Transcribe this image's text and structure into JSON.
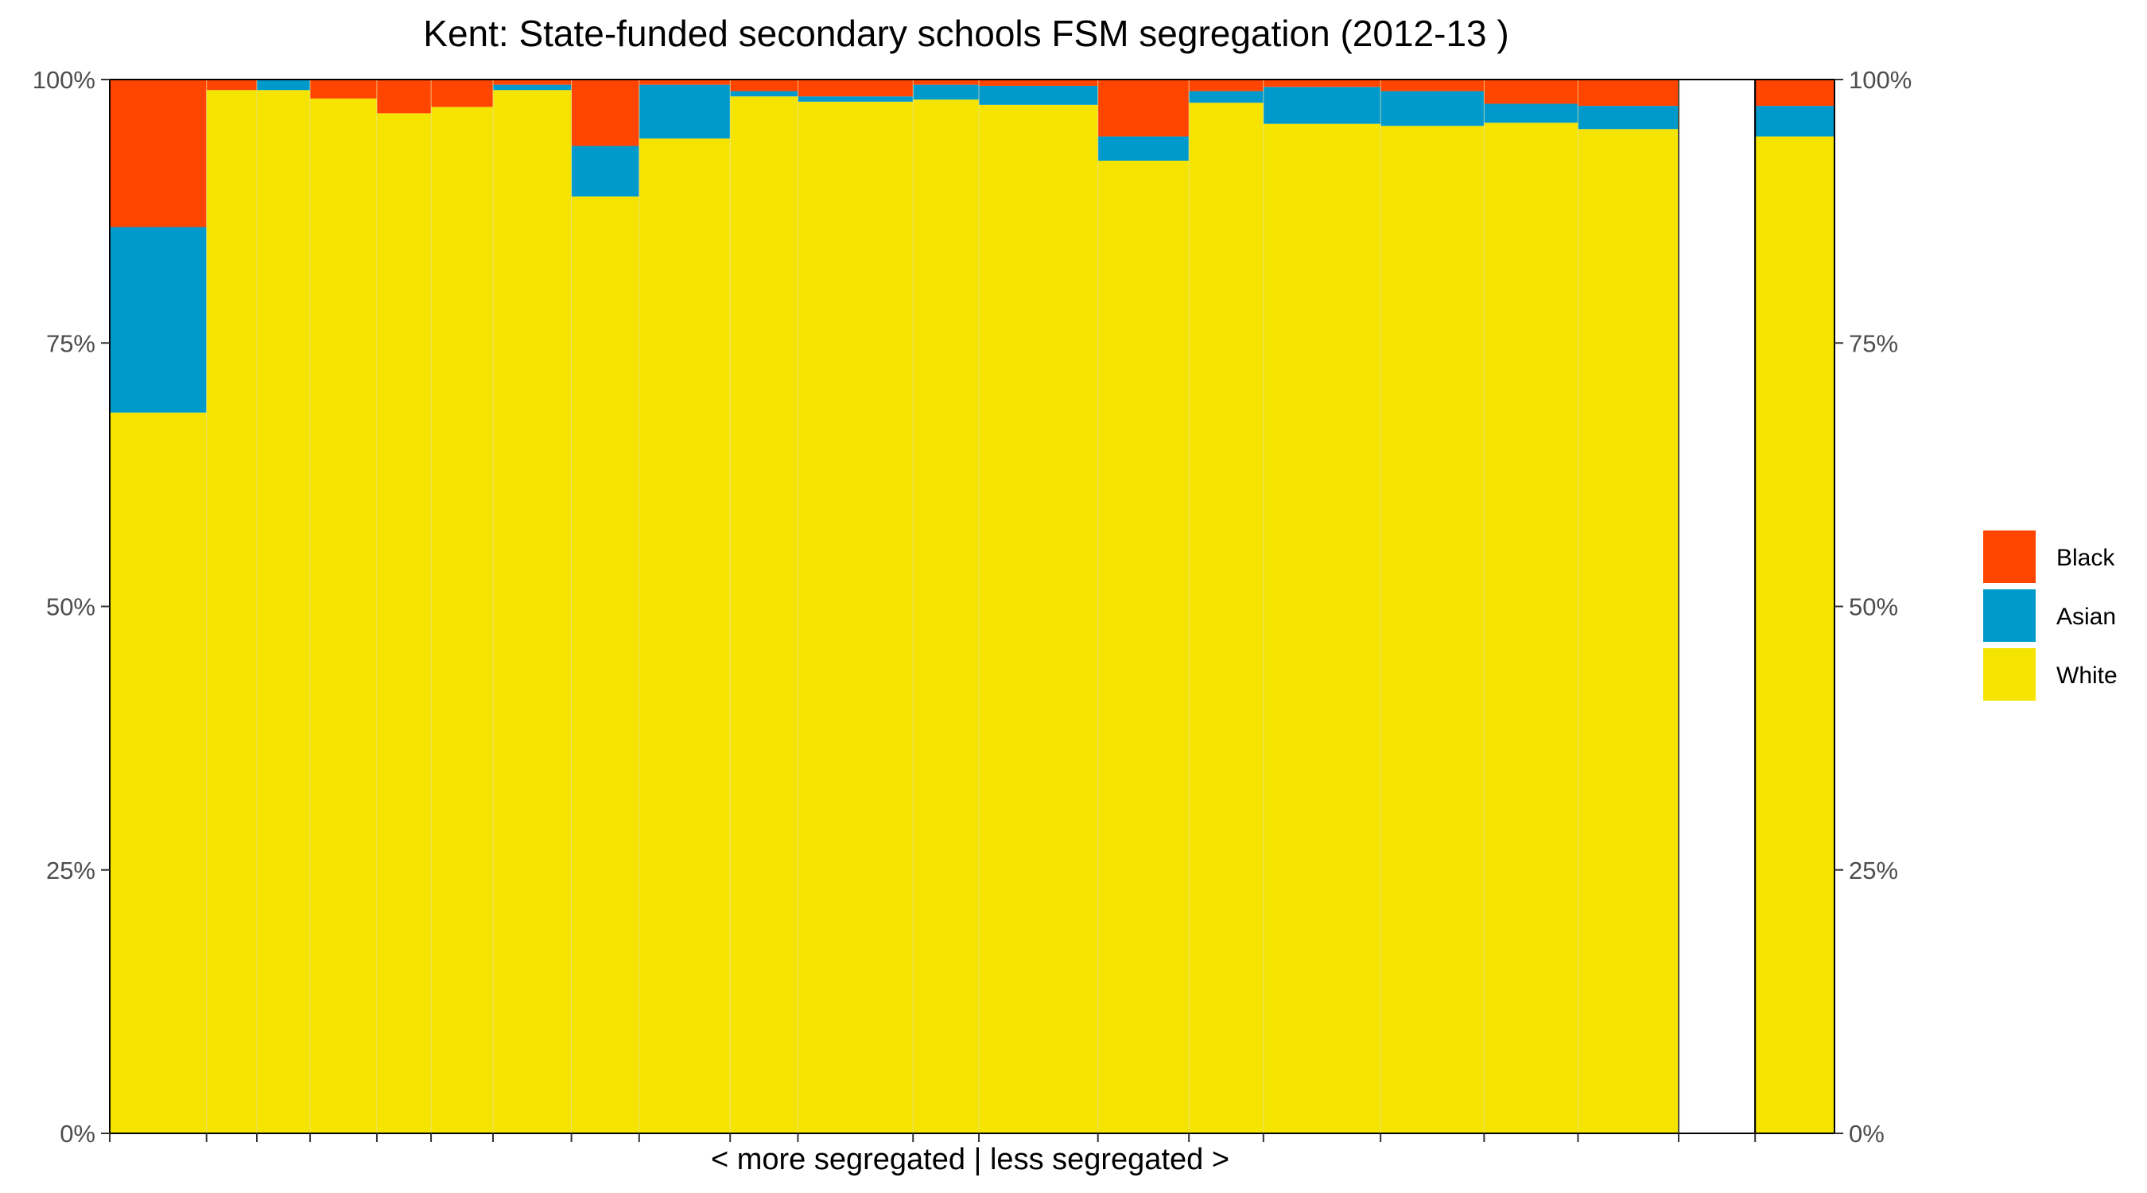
{
  "chart_data": {
    "type": "bar",
    "title": "Kent: State-funded secondary schools FSM segregation (2012-13 )",
    "xlabel": "< more segregated | less segregated >",
    "ylabel": "",
    "ylim": [
      0,
      100
    ],
    "y_ticks": [
      "0%",
      "25%",
      "50%",
      "75%",
      "100%"
    ],
    "stacked": true,
    "variable_width": true,
    "legend_position": "right",
    "colors": {
      "Black": "#FF4500",
      "Asian": "#0099CC",
      "White": "#F5E400"
    },
    "bars": [
      {
        "width": 1.0,
        "White": 68.4,
        "Asian": 17.6,
        "Black": 14.0
      },
      {
        "width": 0.52,
        "White": 99.0,
        "Asian": 0.0,
        "Black": 1.0
      },
      {
        "width": 0.55,
        "White": 99.0,
        "Asian": 1.0,
        "Black": 0.0
      },
      {
        "width": 0.69,
        "White": 98.2,
        "Asian": 0.0,
        "Black": 1.8
      },
      {
        "width": 0.56,
        "White": 96.8,
        "Asian": 0.0,
        "Black": 3.2
      },
      {
        "width": 0.64,
        "White": 97.4,
        "Asian": 0.0,
        "Black": 2.6
      },
      {
        "width": 0.81,
        "White": 99.0,
        "Asian": 0.5,
        "Black": 0.5
      },
      {
        "width": 0.7,
        "White": 88.9,
        "Asian": 4.8,
        "Black": 6.3
      },
      {
        "width": 0.94,
        "White": 94.4,
        "Asian": 5.1,
        "Black": 0.5
      },
      {
        "width": 0.7,
        "White": 98.4,
        "Asian": 0.5,
        "Black": 1.1
      },
      {
        "width": 1.19,
        "White": 97.9,
        "Asian": 0.5,
        "Black": 1.6
      },
      {
        "width": 0.68,
        "White": 98.1,
        "Asian": 1.4,
        "Black": 0.5
      },
      {
        "width": 1.23,
        "White": 97.6,
        "Asian": 1.8,
        "Black": 0.6
      },
      {
        "width": 0.94,
        "White": 92.3,
        "Asian": 2.3,
        "Black": 5.4
      },
      {
        "width": 0.77,
        "White": 97.8,
        "Asian": 1.1,
        "Black": 1.1
      },
      {
        "width": 1.21,
        "White": 95.8,
        "Asian": 3.5,
        "Black": 0.7
      },
      {
        "width": 1.07,
        "White": 95.6,
        "Asian": 3.3,
        "Black": 1.1
      },
      {
        "width": 0.97,
        "White": 95.9,
        "Asian": 1.8,
        "Black": 2.3
      },
      {
        "width": 1.04,
        "White": 95.3,
        "Asian": 2.2,
        "Black": 2.5
      },
      {
        "width": 0.79,
        "empty": true
      },
      {
        "width": 0.82,
        "White": 94.6,
        "Asian": 2.9,
        "Black": 2.5,
        "outlined": true
      }
    ],
    "legend": [
      {
        "name": "Black",
        "color": "#FF4500"
      },
      {
        "name": "Asian",
        "color": "#0099CC"
      },
      {
        "name": "White",
        "color": "#F5E400"
      }
    ]
  }
}
